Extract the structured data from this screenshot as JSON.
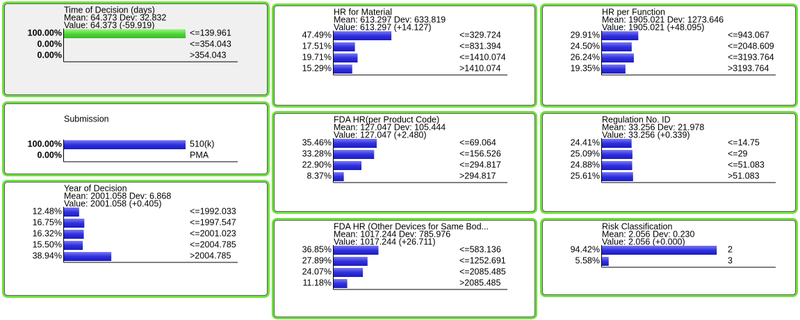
{
  "nodes": [
    {
      "title": "Time of Decision (days)",
      "mean": "Mean: 64.373 Dev: 32.832",
      "value": "Value: 64.373 (-59.919)",
      "states": [
        {
          "prob": 100,
          "prob_label": "100.00%",
          "label": "<=139.961"
        },
        {
          "prob": 0,
          "prob_label": "0.00%",
          "label": "<=354.043"
        },
        {
          "prob": 0,
          "prob_label": "0.00%",
          "label": ">354.043"
        }
      ]
    },
    {
      "title": "Submission",
      "states": [
        {
          "prob": 100,
          "prob_label": "100.00%",
          "label": "510(k)"
        },
        {
          "prob": 0,
          "prob_label": "0.00%",
          "label": "PMA"
        }
      ]
    },
    {
      "title": "Year of Decision",
      "mean": "Mean: 2001.058 Dev: 6.868",
      "value": "Value: 2001.058 (+0.405)",
      "states": [
        {
          "prob": 12.48,
          "prob_label": "12.48%",
          "label": "<=1992.033"
        },
        {
          "prob": 16.75,
          "prob_label": "16.75%",
          "label": "<=1997.547"
        },
        {
          "prob": 16.32,
          "prob_label": "16.32%",
          "label": "<=2001.023"
        },
        {
          "prob": 15.5,
          "prob_label": "15.50%",
          "label": "<=2004.785"
        },
        {
          "prob": 38.94,
          "prob_label": "38.94%",
          "label": ">2004.785"
        }
      ]
    },
    {
      "title": "HR for Material",
      "mean": "Mean: 613.297 Dev: 633.819",
      "value": "Value: 613.297 (+14.127)",
      "states": [
        {
          "prob": 47.49,
          "prob_label": "47.49%",
          "label": "<=329.724"
        },
        {
          "prob": 17.51,
          "prob_label": "17.51%",
          "label": "<=831.394"
        },
        {
          "prob": 19.71,
          "prob_label": "19.71%",
          "label": "<=1410.074"
        },
        {
          "prob": 15.29,
          "prob_label": "15.29%",
          "label": ">1410.074"
        }
      ]
    },
    {
      "title": "FDA HR(per Product Code)",
      "mean": "Mean: 127.047 Dev: 105.444",
      "value": "Value: 127.047 (+2.480)",
      "states": [
        {
          "prob": 35.46,
          "prob_label": "35.46%",
          "label": "<=69.064"
        },
        {
          "prob": 33.28,
          "prob_label": "33.28%",
          "label": "<=156.526"
        },
        {
          "prob": 22.9,
          "prob_label": "22.90%",
          "label": "<=294.817"
        },
        {
          "prob": 8.37,
          "prob_label": "8.37%",
          "label": ">294.817"
        }
      ]
    },
    {
      "title": "FDA HR (Other Devices for Same Bod...",
      "mean": "Mean: 1017.244 Dev: 785.976",
      "value": "Value: 1017.244 (+26.711)",
      "states": [
        {
          "prob": 36.85,
          "prob_label": "36.85%",
          "label": "<=583.136"
        },
        {
          "prob": 27.89,
          "prob_label": "27.89%",
          "label": "<=1252.691"
        },
        {
          "prob": 24.07,
          "prob_label": "24.07%",
          "label": "<=2085.485"
        },
        {
          "prob": 11.18,
          "prob_label": "11.18%",
          "label": ">2085.485"
        }
      ]
    },
    {
      "title": "HR per Function",
      "mean": "Mean: 1905.021 Dev: 1273.646",
      "value": "Value: 1905.021 (+48.095)",
      "states": [
        {
          "prob": 29.91,
          "prob_label": "29.91%",
          "label": "<=943.067"
        },
        {
          "prob": 24.5,
          "prob_label": "24.50%",
          "label": "<=2048.609"
        },
        {
          "prob": 26.24,
          "prob_label": "26.24%",
          "label": "<=3193.764"
        },
        {
          "prob": 19.35,
          "prob_label": "19.35%",
          "label": ">3193.764"
        }
      ]
    },
    {
      "title": "Regulation No. ID",
      "mean": "Mean: 33.256 Dev: 21.978",
      "value": "Value: 33.256 (+0.339)",
      "states": [
        {
          "prob": 24.41,
          "prob_label": "24.41%",
          "label": "<=14.75"
        },
        {
          "prob": 25.09,
          "prob_label": "25.09%",
          "label": "<=29"
        },
        {
          "prob": 24.88,
          "prob_label": "24.88%",
          "label": "<=51.083"
        },
        {
          "prob": 25.61,
          "prob_label": "25.61%",
          "label": ">51.083"
        }
      ]
    },
    {
      "title": "Risk Classification",
      "mean": "Mean: 2.056 Dev: 0.230",
      "value": "Value: 2.056 (+0.000)",
      "states": [
        {
          "prob": 94.42,
          "prob_label": "94.42%",
          "label": "2"
        },
        {
          "prob": 5.58,
          "prob_label": "5.58%",
          "label": "3"
        }
      ]
    }
  ]
}
